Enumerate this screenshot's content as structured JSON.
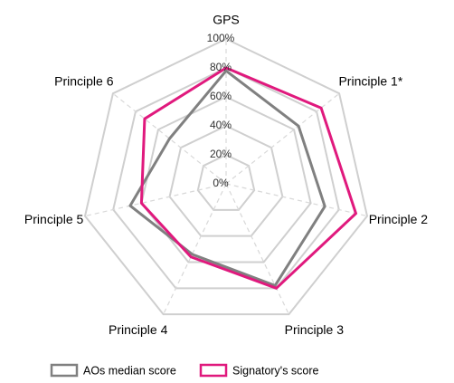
{
  "chart_data": {
    "type": "radar",
    "categories": [
      "GPS",
      "Principle 1*",
      "Principle 2",
      "Principle 3",
      "Principle 4",
      "Principle 5",
      "Principle 6"
    ],
    "series": [
      {
        "name": "AOs median score",
        "color": "#808080",
        "values": [
          78,
          64,
          70,
          78,
          54,
          68,
          50
        ]
      },
      {
        "name": "Signatory's score",
        "color": "#e0197d",
        "values": [
          80,
          84,
          92,
          80,
          56,
          60,
          72
        ]
      }
    ],
    "ylim": [
      0,
      100
    ],
    "yticks": [
      {
        "value": 0,
        "label": "0%"
      },
      {
        "value": 20,
        "label": "20%"
      },
      {
        "value": 40,
        "label": "40%"
      },
      {
        "value": 60,
        "label": "60%"
      },
      {
        "value": 80,
        "label": "80%"
      },
      {
        "value": 100,
        "label": "100%"
      }
    ],
    "grid": true,
    "legend": "bottom"
  }
}
